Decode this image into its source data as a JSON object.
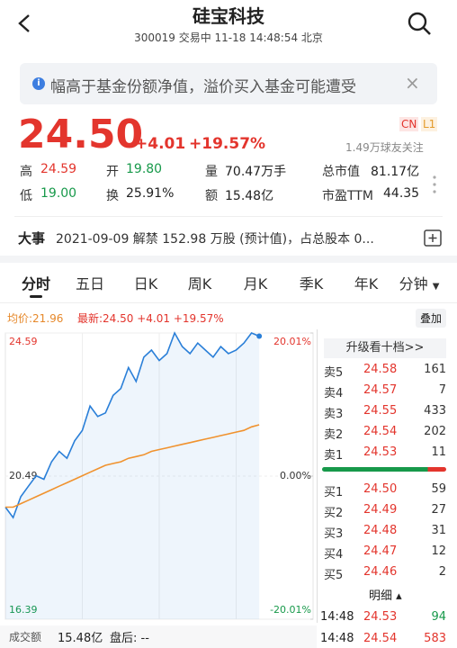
{
  "header": {
    "title": "硅宝科技",
    "code": "300019",
    "status": "交易中 11-18 14:48:54 北京"
  },
  "notice": {
    "text": "幅高于基金份额净值，溢价买入基金可能遭受"
  },
  "quote": {
    "price": "24.50",
    "change": "+4.01",
    "change_pct": "+19.57%",
    "badges": [
      "CN",
      "L1"
    ],
    "followers": "1.49万球友关注",
    "stats": [
      [
        {
          "label": "高",
          "value": "24.59"
        },
        {
          "label": "开",
          "value": "19.80"
        },
        {
          "label": "量",
          "value": "70.47万手"
        },
        {
          "label": "总市值",
          "value": "81.17亿"
        }
      ],
      [
        {
          "label": "低",
          "value": "19.00"
        },
        {
          "label": "换",
          "value": "25.91%"
        },
        {
          "label": "额",
          "value": "15.48亿"
        },
        {
          "label": "市盈TTM",
          "value": "44.35"
        }
      ]
    ]
  },
  "event": {
    "label": "大事",
    "text": "2021-09-09 解禁 152.98 万股 (预计值)，占总股本 0..."
  },
  "tabs": [
    "分时",
    "五日",
    "日K",
    "周K",
    "月K",
    "季K",
    "年K",
    "分钟"
  ],
  "chart_data": {
    "type": "line",
    "avg_label": "均价:21.96",
    "latest_label": "最新:24.50",
    "change": "+4.01",
    "change_pct": "+19.57%",
    "overlay_button": "叠加",
    "x": [
      0,
      6,
      12,
      18,
      24,
      30,
      36,
      42,
      48,
      54,
      60,
      66,
      72,
      78,
      84,
      90,
      96,
      102,
      108,
      114,
      120,
      126,
      132,
      138,
      144,
      150,
      156,
      162,
      168,
      174,
      180,
      186,
      192,
      198
    ],
    "xlim": [
      0,
      240
    ],
    "ylim": [
      16.39,
      24.59
    ],
    "yticks": [
      24.59,
      20.49,
      16.39
    ],
    "y2lim": [
      -20.01,
      20.01
    ],
    "y2ticks": [
      {
        "value": 20.01,
        "label": "20.01%"
      },
      {
        "value": 0,
        "label": "0.00%"
      },
      {
        "value": -20.01,
        "label": "-20.01%"
      }
    ],
    "series": [
      {
        "color": "#2a7fd8",
        "values": [
          19.6,
          19.3,
          19.9,
          20.2,
          20.5,
          20.4,
          20.9,
          21.2,
          21.0,
          21.5,
          21.8,
          22.5,
          22.2,
          22.3,
          22.8,
          23.0,
          23.6,
          23.2,
          23.9,
          24.1,
          23.8,
          24.0,
          24.59,
          24.2,
          24.0,
          24.3,
          24.1,
          23.9,
          24.2,
          24.0,
          24.1,
          24.3,
          24.59,
          24.5
        ]
      },
      {
        "color": "#f0922e",
        "values": [
          19.6,
          19.6,
          19.7,
          19.8,
          19.9,
          20.0,
          20.1,
          20.2,
          20.3,
          20.4,
          20.5,
          20.6,
          20.7,
          20.8,
          20.85,
          20.9,
          21.0,
          21.05,
          21.1,
          21.2,
          21.25,
          21.3,
          21.35,
          21.4,
          21.45,
          21.5,
          21.55,
          21.6,
          21.65,
          21.7,
          21.75,
          21.8,
          21.9,
          21.96
        ]
      }
    ]
  },
  "order_book": {
    "upgrade": "升级看十档>>",
    "asks": [
      {
        "label": "卖5",
        "price": "24.58",
        "volume": "161"
      },
      {
        "label": "卖4",
        "price": "24.57",
        "volume": "7"
      },
      {
        "label": "卖3",
        "price": "24.55",
        "volume": "433"
      },
      {
        "label": "卖2",
        "price": "24.54",
        "volume": "202"
      },
      {
        "label": "卖1",
        "price": "24.53",
        "volume": "11"
      }
    ],
    "bids": [
      {
        "label": "买1",
        "price": "24.50",
        "volume": "59"
      },
      {
        "label": "买2",
        "price": "24.49",
        "volume": "27"
      },
      {
        "label": "买3",
        "price": "24.48",
        "volume": "31"
      },
      {
        "label": "买4",
        "price": "24.47",
        "volume": "12"
      },
      {
        "label": "买5",
        "price": "24.46",
        "volume": "2"
      }
    ]
  },
  "trades": {
    "title": "明细",
    "rows": [
      {
        "time": "14:48",
        "price": "24.53",
        "volume": "94"
      },
      {
        "time": "14:48",
        "price": "24.54",
        "volume": "583"
      }
    ]
  },
  "footer": {
    "label": "成交额",
    "value": "15.48亿",
    "after_label": "盘后:",
    "after_value": "--"
  }
}
